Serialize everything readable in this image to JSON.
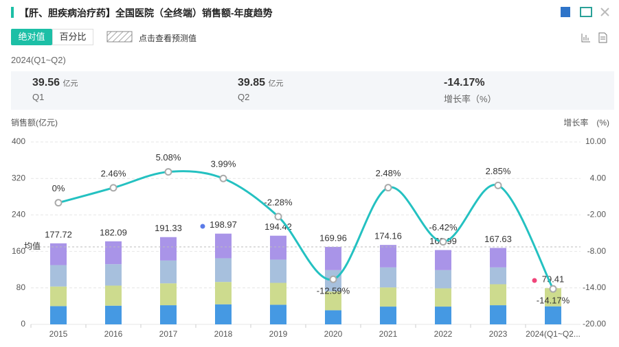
{
  "header": {
    "title": "【肝、胆疾病治疗药】全国医院（全终端）销售额-年度趋势",
    "tabs": [
      "绝对值",
      "百分比"
    ],
    "forecast_legend": "点击查看预测值",
    "period": "2024(Q1~Q2)"
  },
  "stats": [
    {
      "value": "39.56",
      "unit": "亿元",
      "label": "Q1"
    },
    {
      "value": "39.85",
      "unit": "亿元",
      "label": "Q2"
    },
    {
      "value": "-14.17%",
      "label": "增长率（%）"
    }
  ],
  "chart_data": {
    "type": "bar-line",
    "y_label": "销售额(亿元)",
    "y2_label": "增长率　(%)",
    "categories": [
      "2015",
      "2016",
      "2017",
      "2018",
      "2019",
      "2020",
      "2021",
      "2022",
      "2023",
      "2024(Q1~Q2..."
    ],
    "series": [
      {
        "color": "#4599e3",
        "values": [
          40,
          41,
          42,
          44,
          43,
          31,
          39,
          39,
          42,
          39.56
        ]
      },
      {
        "color": "#cddb8e",
        "values": [
          43,
          44,
          48,
          49,
          48,
          41,
          42,
          40,
          46,
          39.85
        ]
      },
      {
        "color": "#a7c0dd",
        "values": [
          47,
          47,
          50,
          52,
          51,
          47,
          44,
          40,
          37,
          null
        ]
      },
      {
        "color": "#a994e8",
        "values": [
          47.72,
          50.09,
          51.33,
          53.97,
          52.42,
          50.96,
          49.16,
          43.99,
          42.63,
          null
        ]
      }
    ],
    "totals": [
      177.72,
      182.09,
      191.33,
      198.97,
      194.42,
      169.96,
      174.16,
      162.99,
      167.63,
      79.41
    ],
    "line": {
      "color": "#24c1c1",
      "axis": "y2",
      "values": [
        0,
        2.46,
        5.08,
        3.99,
        -2.28,
        -12.59,
        2.48,
        -6.42,
        2.85,
        -14.17
      ],
      "value_labels": [
        "0%",
        "2.46%",
        "5.08%",
        "3.99%",
        "-2.28%",
        "-12.59%",
        "2.48%",
        "-6.42%",
        "2.85%",
        "-14.17%"
      ]
    },
    "average": 169.87,
    "average_label": "均值",
    "ylim": [
      0,
      400
    ],
    "yticks": [
      0,
      80,
      160,
      240,
      320,
      400
    ],
    "y2lim": [
      -20,
      10
    ],
    "y2ticks": [
      {
        "value": -20,
        "label": "-20.00"
      },
      {
        "value": -14,
        "label": "-14.00"
      },
      {
        "value": -8,
        "label": "-8.00"
      },
      {
        "value": -2,
        "label": "-2.00"
      },
      {
        "value": 4,
        "label": "4.00"
      },
      {
        "value": 10,
        "label": "10.00"
      }
    ],
    "grid": true
  }
}
